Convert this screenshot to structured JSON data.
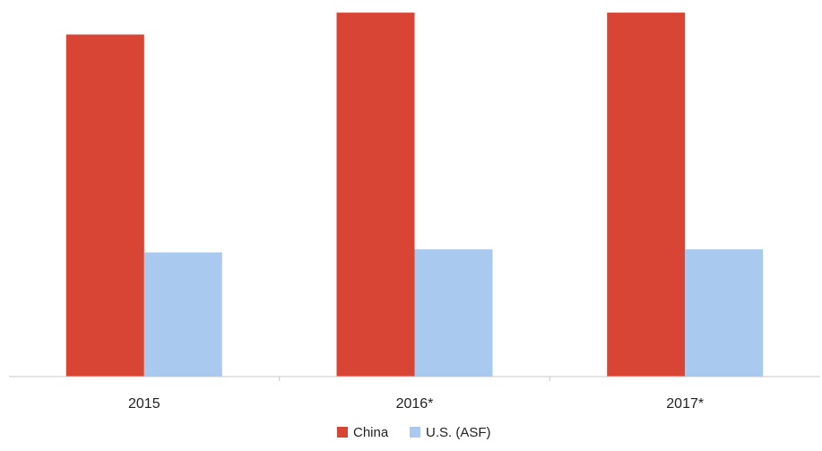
{
  "chart_data": {
    "type": "bar",
    "categories": [
      "2015",
      "2016*",
      "2017*"
    ],
    "series": [
      {
        "name": "China",
        "values": [
          100,
          106.4,
          106.4
        ],
        "color": "#d94535"
      },
      {
        "name": "U.S. (ASF)",
        "values": [
          36.3,
          37.2,
          37.2
        ],
        "color": "#a9c9ef"
      }
    ],
    "ylim": [
      0,
      108
    ],
    "grid": false,
    "legend": "bottom",
    "axis_color": "#c8c8c8"
  }
}
